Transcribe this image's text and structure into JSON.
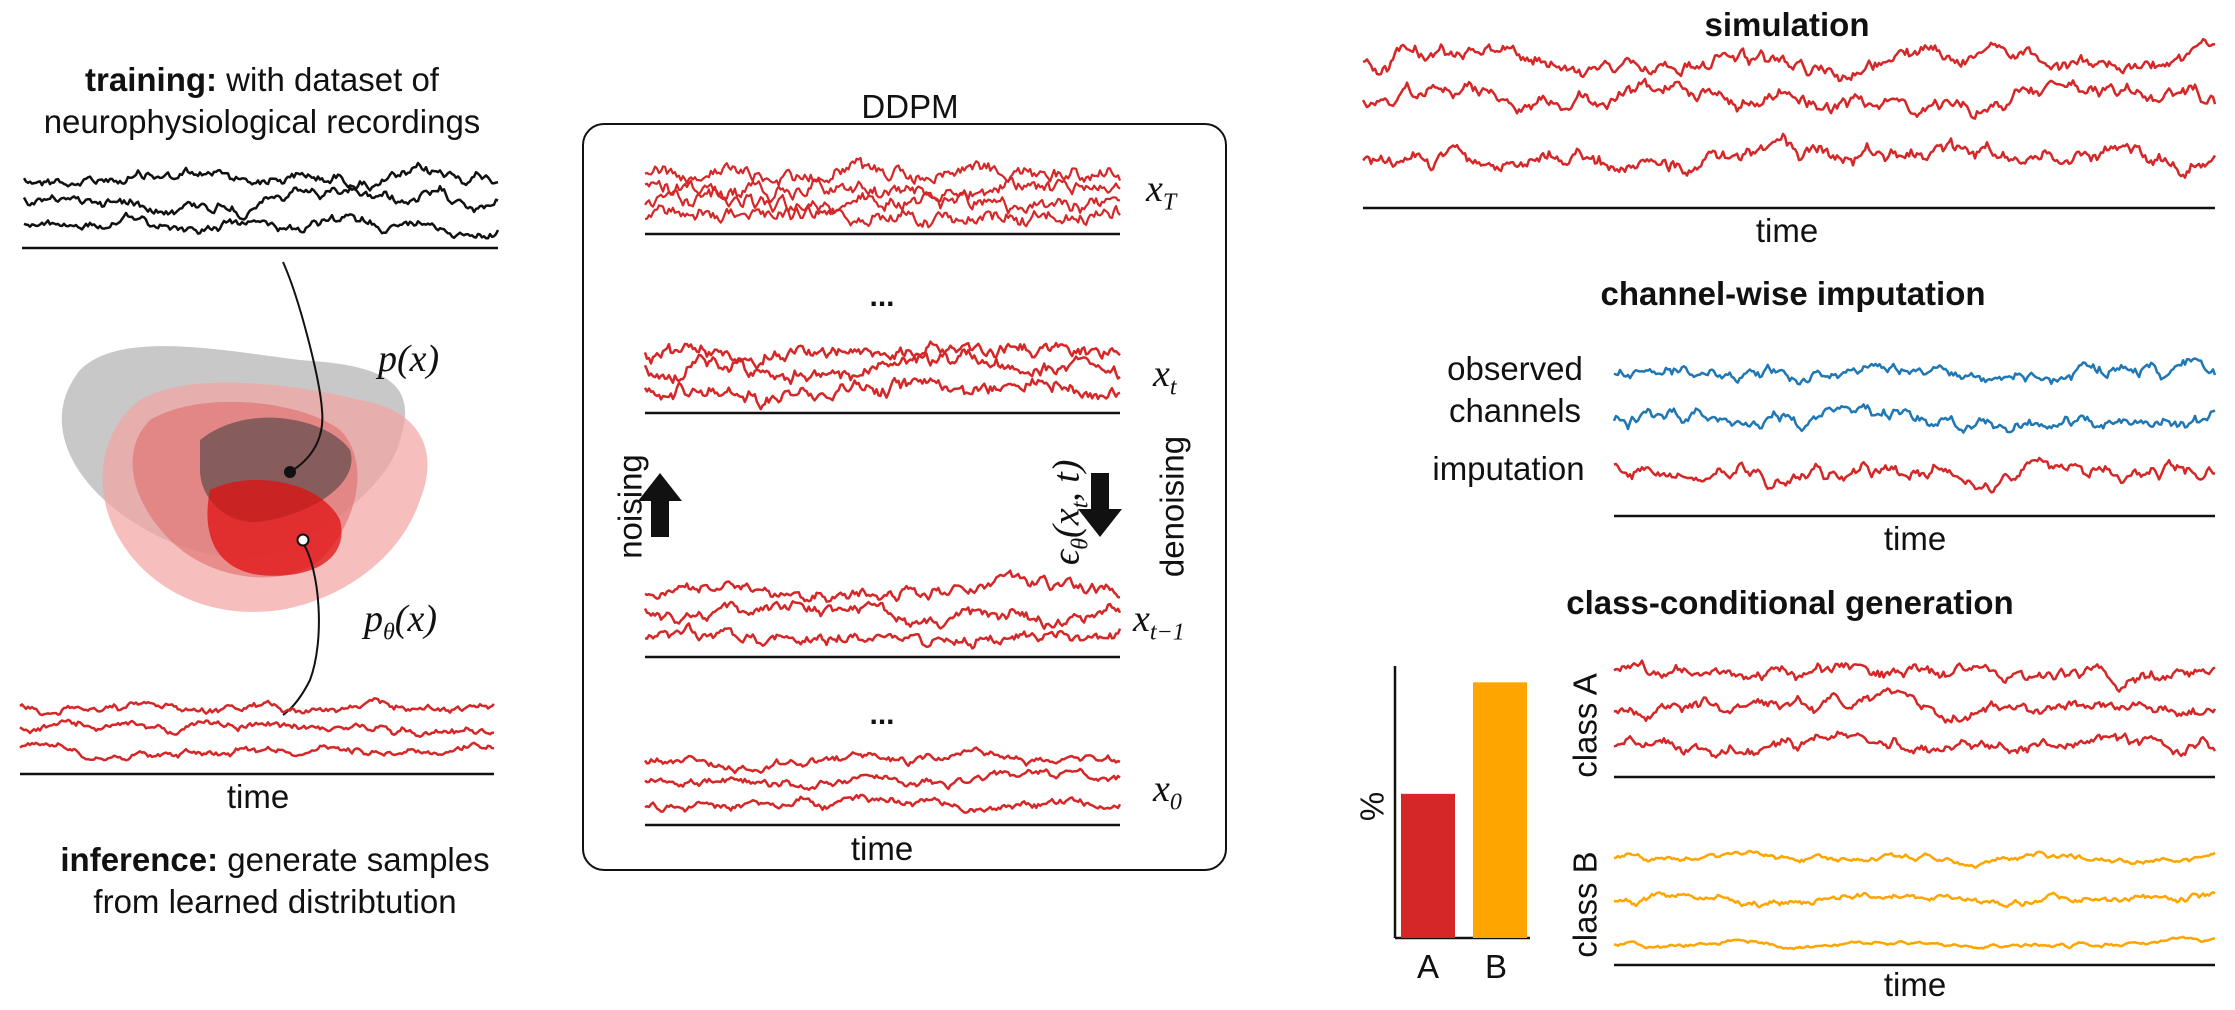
{
  "colors": {
    "red": "#d62728",
    "blue": "#1f77b4",
    "orange": "#ffa500",
    "black": "#111111",
    "grey": "#9a9a9a"
  },
  "left": {
    "training_bold": "training:",
    "training_rest": " with dataset of",
    "training_line2": "neurophysiological recordings",
    "px_label": "p(x)",
    "ptheta_label": "pθ(x)",
    "time_label": "time",
    "inference_bold": "inference:",
    "inference_rest": " generate samples",
    "inference_line2": "from learned distribtution"
  },
  "ddpm": {
    "title": "DDPM",
    "labels": [
      "xT",
      "xt",
      "xt−1",
      "x0"
    ],
    "ellipsis": "...",
    "noising": "noising",
    "denoising": "denoising",
    "epsilon": "εθ(xt, t)",
    "time_label": "time"
  },
  "right": {
    "simulation_title": "simulation",
    "simulation_time": "time",
    "imputation_title": "channel-wise imputation",
    "observed_line1": "observed",
    "observed_line2": "channels",
    "imputation_label": "imputation",
    "imputation_time": "time",
    "class_title": "class-conditional generation",
    "class_a": "class A",
    "class_b": "class B",
    "class_time": "time",
    "percent_label": "%"
  },
  "chart_data": {
    "type": "bar",
    "categories": [
      "A",
      "B"
    ],
    "values": [
      0.53,
      0.94
    ],
    "colors": [
      "#d62728",
      "#ffa500"
    ],
    "ylabel": "%",
    "xlabel": "",
    "title": "",
    "ylim": [
      0,
      1
    ]
  }
}
